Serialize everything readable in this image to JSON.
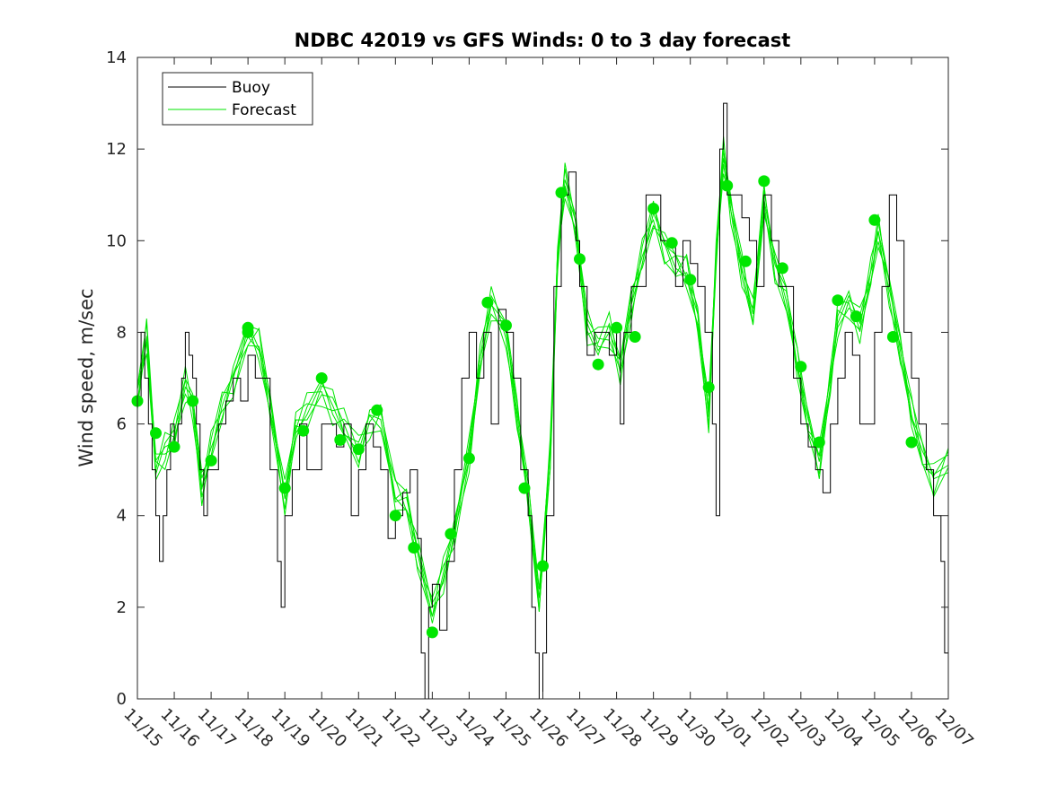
{
  "chart_data": {
    "type": "line",
    "title": "NDBC 42019 vs GFS Winds: 0 to 3 day forecast",
    "xlabel": "",
    "ylabel": "Wind speed, m/sec",
    "ylim": [
      0,
      14
    ],
    "yticks": [
      0,
      2,
      4,
      6,
      8,
      10,
      12,
      14
    ],
    "xlim": [
      "11/15",
      "12/07"
    ],
    "x_tick_labels": [
      "11/15",
      "11/16",
      "11/17",
      "11/18",
      "11/19",
      "11/20",
      "11/21",
      "11/22",
      "11/23",
      "11/24",
      "11/25",
      "11/26",
      "11/27",
      "11/28",
      "11/29",
      "11/30",
      "12/01",
      "12/02",
      "12/03",
      "12/04",
      "12/05",
      "12/06",
      "12/07"
    ],
    "grid": false,
    "legend": {
      "placement": "top-left",
      "entries": [
        "Buoy",
        "Forecast"
      ]
    },
    "colors": {
      "buoy": "#000000",
      "forecast": "#00e600",
      "markers": "#00e600"
    },
    "series": [
      {
        "name": "Buoy",
        "color": "#000000",
        "points": [
          [
            0.0,
            6.5
          ],
          [
            0.1,
            8
          ],
          [
            0.2,
            7
          ],
          [
            0.3,
            6
          ],
          [
            0.4,
            5
          ],
          [
            0.5,
            4
          ],
          [
            0.6,
            3
          ],
          [
            0.7,
            4
          ],
          [
            0.8,
            5
          ],
          [
            0.9,
            6
          ],
          [
            1.0,
            5.5
          ],
          [
            1.1,
            6
          ],
          [
            1.2,
            7
          ],
          [
            1.3,
            8
          ],
          [
            1.4,
            7.5
          ],
          [
            1.5,
            7
          ],
          [
            1.6,
            6
          ],
          [
            1.7,
            5
          ],
          [
            1.8,
            4
          ],
          [
            1.9,
            5
          ],
          [
            2.0,
            5
          ],
          [
            2.2,
            6
          ],
          [
            2.4,
            6.5
          ],
          [
            2.6,
            7
          ],
          [
            2.8,
            6.5
          ],
          [
            3.0,
            7.5
          ],
          [
            3.2,
            7
          ],
          [
            3.4,
            7
          ],
          [
            3.6,
            5
          ],
          [
            3.8,
            3
          ],
          [
            3.9,
            2
          ],
          [
            4.0,
            4
          ],
          [
            4.2,
            5
          ],
          [
            4.4,
            6
          ],
          [
            4.6,
            5
          ],
          [
            4.8,
            5
          ],
          [
            5.0,
            6
          ],
          [
            5.2,
            6
          ],
          [
            5.4,
            5.5
          ],
          [
            5.6,
            6
          ],
          [
            5.8,
            4
          ],
          [
            6.0,
            5
          ],
          [
            6.2,
            6
          ],
          [
            6.4,
            5.5
          ],
          [
            6.6,
            5
          ],
          [
            6.8,
            3.5
          ],
          [
            7.0,
            4
          ],
          [
            7.2,
            4.5
          ],
          [
            7.4,
            5
          ],
          [
            7.6,
            3.5
          ],
          [
            7.7,
            1
          ],
          [
            7.8,
            0
          ],
          [
            7.9,
            2
          ],
          [
            8.0,
            2.5
          ],
          [
            8.2,
            1.5
          ],
          [
            8.4,
            3
          ],
          [
            8.6,
            5
          ],
          [
            8.8,
            7
          ],
          [
            9.0,
            8
          ],
          [
            9.2,
            7
          ],
          [
            9.4,
            8
          ],
          [
            9.6,
            6
          ],
          [
            9.8,
            8.5
          ],
          [
            10.0,
            8
          ],
          [
            10.2,
            7
          ],
          [
            10.4,
            5
          ],
          [
            10.6,
            4
          ],
          [
            10.7,
            2
          ],
          [
            10.8,
            1
          ],
          [
            10.9,
            0
          ],
          [
            11.0,
            1
          ],
          [
            11.1,
            4
          ],
          [
            11.3,
            9
          ],
          [
            11.5,
            11
          ],
          [
            11.7,
            11.5
          ],
          [
            11.9,
            10
          ],
          [
            12.0,
            9
          ],
          [
            12.2,
            7.5
          ],
          [
            12.4,
            8
          ],
          [
            12.6,
            8
          ],
          [
            12.8,
            7.5
          ],
          [
            13.0,
            8
          ],
          [
            13.1,
            6
          ],
          [
            13.2,
            8
          ],
          [
            13.4,
            9
          ],
          [
            13.6,
            9
          ],
          [
            13.8,
            11
          ],
          [
            14.0,
            11
          ],
          [
            14.2,
            10
          ],
          [
            14.4,
            10
          ],
          [
            14.6,
            9
          ],
          [
            14.8,
            10
          ],
          [
            15.0,
            9.5
          ],
          [
            15.2,
            9
          ],
          [
            15.4,
            8
          ],
          [
            15.6,
            6
          ],
          [
            15.7,
            4
          ],
          [
            15.8,
            12
          ],
          [
            15.9,
            13
          ],
          [
            16.0,
            11
          ],
          [
            16.2,
            11
          ],
          [
            16.4,
            10.5
          ],
          [
            16.6,
            10
          ],
          [
            16.8,
            9
          ],
          [
            17.0,
            11
          ],
          [
            17.2,
            10
          ],
          [
            17.4,
            9
          ],
          [
            17.6,
            9
          ],
          [
            17.8,
            7
          ],
          [
            18.0,
            6
          ],
          [
            18.2,
            5.5
          ],
          [
            18.4,
            5
          ],
          [
            18.6,
            4.5
          ],
          [
            18.8,
            6
          ],
          [
            19.0,
            7
          ],
          [
            19.2,
            8
          ],
          [
            19.4,
            7.5
          ],
          [
            19.6,
            6
          ],
          [
            19.8,
            6
          ],
          [
            20.0,
            8
          ],
          [
            20.2,
            9
          ],
          [
            20.4,
            11
          ],
          [
            20.6,
            10
          ],
          [
            20.8,
            8
          ],
          [
            21.0,
            7
          ],
          [
            21.2,
            6
          ],
          [
            21.4,
            5
          ],
          [
            21.6,
            4
          ],
          [
            21.8,
            3
          ],
          [
            21.9,
            1
          ],
          [
            22.0,
            0.5
          ]
        ]
      },
      {
        "name": "Forecast",
        "color": "#00e600",
        "points": [
          [
            0.0,
            6.5
          ],
          [
            0.25,
            7.8
          ],
          [
            0.5,
            5.2
          ],
          [
            0.75,
            5.5
          ],
          [
            1.0,
            5.6
          ],
          [
            1.3,
            6.8
          ],
          [
            1.5,
            6.6
          ],
          [
            1.75,
            4.6
          ],
          [
            2.0,
            5.3
          ],
          [
            2.3,
            6.4
          ],
          [
            2.6,
            7.1
          ],
          [
            3.0,
            7.9
          ],
          [
            3.3,
            7.6
          ],
          [
            3.6,
            6.5
          ],
          [
            4.0,
            4.5
          ],
          [
            4.3,
            5.8
          ],
          [
            4.6,
            6.2
          ],
          [
            5.0,
            6.9
          ],
          [
            5.3,
            6.4
          ],
          [
            5.6,
            5.8
          ],
          [
            6.0,
            5.4
          ],
          [
            6.3,
            6.2
          ],
          [
            6.6,
            6.1
          ],
          [
            7.0,
            4.3
          ],
          [
            7.3,
            4.4
          ],
          [
            7.6,
            3.3
          ],
          [
            8.0,
            1.8
          ],
          [
            8.3,
            2.6
          ],
          [
            8.6,
            3.8
          ],
          [
            9.0,
            5.4
          ],
          [
            9.3,
            7.2
          ],
          [
            9.6,
            8.6
          ],
          [
            10.0,
            8.2
          ],
          [
            10.3,
            6.2
          ],
          [
            10.6,
            4.3
          ],
          [
            10.9,
            2.2
          ],
          [
            11.2,
            5.5
          ],
          [
            11.4,
            9.5
          ],
          [
            11.6,
            11.2
          ],
          [
            11.9,
            10.4
          ],
          [
            12.2,
            8.2
          ],
          [
            12.5,
            7.6
          ],
          [
            12.8,
            8.0
          ],
          [
            13.1,
            7.4
          ],
          [
            13.4,
            8.6
          ],
          [
            13.7,
            9.5
          ],
          [
            14.0,
            10.6
          ],
          [
            14.3,
            10.0
          ],
          [
            14.6,
            9.4
          ],
          [
            14.9,
            9.2
          ],
          [
            15.2,
            8.4
          ],
          [
            15.5,
            6.3
          ],
          [
            15.7,
            9.5
          ],
          [
            15.9,
            11.8
          ],
          [
            16.1,
            10.9
          ],
          [
            16.4,
            9.4
          ],
          [
            16.7,
            8.2
          ],
          [
            17.0,
            10.9
          ],
          [
            17.3,
            9.6
          ],
          [
            17.6,
            8.7
          ],
          [
            17.9,
            7.2
          ],
          [
            18.2,
            6.1
          ],
          [
            18.5,
            5.3
          ],
          [
            18.8,
            6.8
          ],
          [
            19.0,
            8.2
          ],
          [
            19.3,
            8.8
          ],
          [
            19.6,
            8.2
          ],
          [
            19.9,
            9.1
          ],
          [
            20.1,
            10.2
          ],
          [
            20.4,
            9.1
          ],
          [
            20.7,
            7.6
          ],
          [
            21.0,
            6.1
          ],
          [
            21.3,
            5.4
          ],
          [
            21.6,
            4.9
          ],
          [
            22.0,
            5.1
          ]
        ]
      }
    ],
    "markers": [
      [
        0.0,
        6.5
      ],
      [
        0.5,
        5.8
      ],
      [
        1.0,
        5.5
      ],
      [
        1.5,
        6.5
      ],
      [
        2.0,
        5.2
      ],
      [
        3.0,
        8.1
      ],
      [
        3.0,
        8.0
      ],
      [
        4.0,
        4.6
      ],
      [
        4.5,
        5.85
      ],
      [
        5.0,
        7.0
      ],
      [
        5.5,
        5.65
      ],
      [
        6.0,
        5.45
      ],
      [
        6.5,
        6.3
      ],
      [
        7.0,
        4.0
      ],
      [
        7.5,
        3.3
      ],
      [
        8.0,
        1.45
      ],
      [
        8.5,
        3.6
      ],
      [
        9.0,
        5.25
      ],
      [
        9.5,
        8.65
      ],
      [
        10.0,
        8.15
      ],
      [
        10.5,
        4.6
      ],
      [
        11.0,
        2.9
      ],
      [
        11.5,
        11.05
      ],
      [
        12.0,
        9.6
      ],
      [
        12.5,
        7.3
      ],
      [
        13.0,
        8.1
      ],
      [
        13.5,
        7.9
      ],
      [
        14.0,
        10.7
      ],
      [
        14.5,
        9.95
      ],
      [
        15.0,
        9.15
      ],
      [
        15.5,
        6.8
      ],
      [
        16.0,
        11.2
      ],
      [
        16.5,
        9.55
      ],
      [
        17.0,
        11.3
      ],
      [
        17.5,
        9.4
      ],
      [
        18.0,
        7.25
      ],
      [
        18.5,
        5.6
      ],
      [
        19.0,
        8.7
      ],
      [
        19.5,
        8.35
      ],
      [
        20.0,
        10.45
      ],
      [
        20.5,
        7.9
      ],
      [
        21.0,
        5.6
      ]
    ]
  }
}
